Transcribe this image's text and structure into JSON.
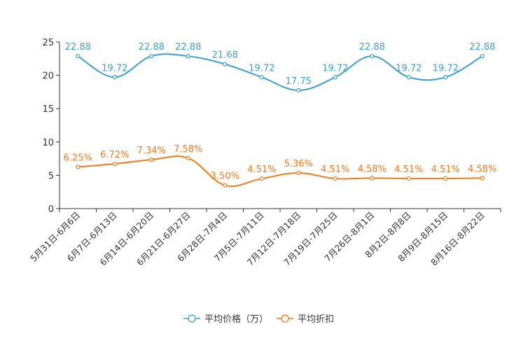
{
  "chart_data": {
    "type": "line",
    "title": "",
    "xlabel": "",
    "ylabel": "",
    "ylim": [
      0,
      25
    ],
    "yticks": [
      0,
      5,
      10,
      15,
      20,
      25
    ],
    "grid": false,
    "legend_position": "bottom-center",
    "categories": [
      "5月31日-6月6日",
      "6月7日-6月13日",
      "6月14日-6月20日",
      "6月21日-6月27日",
      "6月28日-7月4日",
      "7月5日-7月11日",
      "7月12日-7月18日",
      "7月19日-7月25日",
      "7月26日-8月1日",
      "8月2日-8月8日",
      "8月9日-8月15日",
      "8月16日-8月22日"
    ],
    "series": [
      {
        "name": "平均价格（万）",
        "color": "#3a9fd0",
        "values": [
          22.88,
          19.72,
          22.88,
          22.88,
          21.68,
          19.72,
          17.75,
          19.72,
          22.88,
          19.72,
          19.72,
          22.88
        ],
        "labels": [
          "22.88",
          "19.72",
          "22.88",
          "22.88",
          "21.68",
          "19.72",
          "17.75",
          "19.72",
          "22.88",
          "19.72",
          "19.72",
          "22.88"
        ]
      },
      {
        "name": "平均折扣",
        "color": "#f07a1a",
        "values": [
          6.25,
          6.72,
          7.34,
          7.58,
          3.5,
          4.51,
          5.36,
          4.51,
          4.58,
          4.51,
          4.51,
          4.58
        ],
        "labels": [
          "6.25%",
          "6.72%",
          "7.34%",
          "7.58%",
          "3.50%",
          "4.51%",
          "5.36%",
          "4.51%",
          "4.58%",
          "4.51%",
          "4.51%",
          "4.58%"
        ]
      }
    ]
  }
}
